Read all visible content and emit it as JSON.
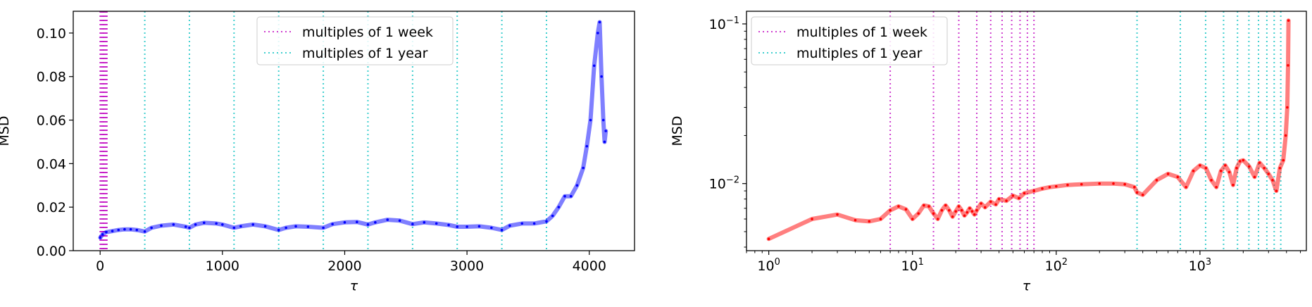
{
  "chart_data": [
    {
      "type": "line",
      "scale": "linear",
      "xlabel": "τ",
      "ylabel": "MSD",
      "xlim": [
        -220,
        4370
      ],
      "ylim": [
        0,
        0.11
      ],
      "xticks": [
        {
          "value": 0,
          "label": "0"
        },
        {
          "value": 1000,
          "label": "1000"
        },
        {
          "value": 2000,
          "label": "2000"
        },
        {
          "value": 3000,
          "label": "3000"
        },
        {
          "value": 4000,
          "label": "4000"
        }
      ],
      "yticks": [
        {
          "value": 0,
          "label": "0.00"
        },
        {
          "value": 0.02,
          "label": "0.02"
        },
        {
          "value": 0.04,
          "label": "0.04"
        },
        {
          "value": 0.06,
          "label": "0.06"
        },
        {
          "value": 0.08,
          "label": "0.08"
        },
        {
          "value": 0.1,
          "label": "0.10"
        }
      ],
      "series_color": "#0000ff",
      "week_line_color": "#bf00bf",
      "year_line_color": "#00bfbf",
      "legend": [
        "multiples of 1 week",
        "multiples of 1 year"
      ],
      "legend_position": "top-center",
      "x": [
        1,
        20,
        50,
        100,
        150,
        200,
        250,
        300,
        365,
        420,
        500,
        600,
        700,
        730,
        780,
        850,
        950,
        1000,
        1095,
        1150,
        1250,
        1350,
        1460,
        1520,
        1600,
        1700,
        1825,
        1900,
        2000,
        2100,
        2190,
        2250,
        2350,
        2450,
        2555,
        2650,
        2750,
        2850,
        2920,
        3000,
        3100,
        3200,
        3285,
        3350,
        3450,
        3550,
        3650,
        3700,
        3750,
        3800,
        3850,
        3900,
        3950,
        3980,
        4010,
        4040,
        4070,
        4085,
        4100,
        4115,
        4125,
        4135
      ],
      "y": [
        0.006,
        0.0075,
        0.0085,
        0.009,
        0.0095,
        0.0098,
        0.0098,
        0.0095,
        0.0088,
        0.0105,
        0.0115,
        0.012,
        0.011,
        0.0105,
        0.012,
        0.0128,
        0.0125,
        0.012,
        0.0105,
        0.0112,
        0.012,
        0.0112,
        0.0095,
        0.0105,
        0.0112,
        0.011,
        0.0105,
        0.0122,
        0.013,
        0.0132,
        0.012,
        0.013,
        0.0142,
        0.0138,
        0.0122,
        0.013,
        0.0125,
        0.0118,
        0.011,
        0.011,
        0.0112,
        0.0105,
        0.0095,
        0.0115,
        0.0125,
        0.0125,
        0.0135,
        0.016,
        0.02,
        0.025,
        0.025,
        0.03,
        0.038,
        0.048,
        0.06,
        0.085,
        0.1,
        0.105,
        0.08,
        0.06,
        0.05,
        0.055
      ],
      "week_lines": {
        "spacing": 7,
        "max": 60
      },
      "year_lines": [
        365,
        730,
        1095,
        1460,
        1825,
        2190,
        2555,
        2920,
        3285,
        3650
      ]
    },
    {
      "type": "line",
      "scale": "log-log",
      "xlabel": "τ",
      "ylabel": "MSD",
      "xlim": [
        0.7,
        5500
      ],
      "ylim": [
        0.0038,
        0.12
      ],
      "xticks": [
        {
          "value": 1,
          "base": "10",
          "exp": "0"
        },
        {
          "value": 10,
          "base": "10",
          "exp": "1"
        },
        {
          "value": 100,
          "base": "10",
          "exp": "2"
        },
        {
          "value": 1000,
          "base": "10",
          "exp": "3"
        }
      ],
      "yticks": [
        {
          "value": 0.01,
          "base": "10",
          "exp": "−2"
        },
        {
          "value": 0.1,
          "base": "10",
          "exp": "−1"
        }
      ],
      "series_color": "#ff0000",
      "week_line_color": "#bf00bf",
      "year_line_color": "#00bfbf",
      "legend": [
        "multiples of 1 week",
        "multiples of 1 year"
      ],
      "legend_position": "top-left",
      "x": [
        1,
        2,
        3,
        4,
        5,
        6,
        7,
        8,
        9,
        10,
        11,
        12,
        13,
        14,
        15,
        16,
        17,
        18,
        19,
        20,
        21,
        22,
        23,
        24,
        25,
        26,
        27,
        28,
        30,
        32,
        35,
        38,
        40,
        45,
        50,
        55,
        60,
        70,
        80,
        90,
        100,
        120,
        150,
        200,
        250,
        300,
        350,
        365,
        400,
        500,
        600,
        700,
        800,
        900,
        1000,
        1100,
        1200,
        1300,
        1400,
        1500,
        1600,
        1700,
        1800,
        1900,
        2000,
        2200,
        2400,
        2600,
        2800,
        3000,
        3200,
        3400,
        3600,
        3800,
        3950,
        4050,
        4100,
        4130
      ],
      "y": [
        0.0045,
        0.006,
        0.0064,
        0.0059,
        0.0058,
        0.006,
        0.0068,
        0.0072,
        0.0069,
        0.006,
        0.0065,
        0.0073,
        0.0072,
        0.0065,
        0.006,
        0.0068,
        0.0073,
        0.0068,
        0.0062,
        0.0067,
        0.0072,
        0.0068,
        0.0063,
        0.0066,
        0.007,
        0.0067,
        0.0064,
        0.0068,
        0.0075,
        0.0071,
        0.0077,
        0.0074,
        0.008,
        0.0078,
        0.0084,
        0.0081,
        0.0087,
        0.009,
        0.0093,
        0.0095,
        0.0096,
        0.0098,
        0.0099,
        0.01,
        0.01,
        0.0099,
        0.0095,
        0.0088,
        0.0085,
        0.0105,
        0.0115,
        0.011,
        0.0095,
        0.012,
        0.013,
        0.0125,
        0.0105,
        0.0095,
        0.012,
        0.013,
        0.0118,
        0.0098,
        0.0125,
        0.0138,
        0.014,
        0.0128,
        0.011,
        0.0135,
        0.0125,
        0.0115,
        0.0105,
        0.009,
        0.0125,
        0.014,
        0.02,
        0.03,
        0.055,
        0.105
      ],
      "week_lines": [
        7,
        14,
        21,
        28,
        35,
        42,
        49,
        56,
        63,
        70
      ],
      "year_lines": [
        365,
        730,
        1095,
        1460,
        1825,
        2190,
        2555,
        2920,
        3285,
        3650
      ]
    }
  ]
}
